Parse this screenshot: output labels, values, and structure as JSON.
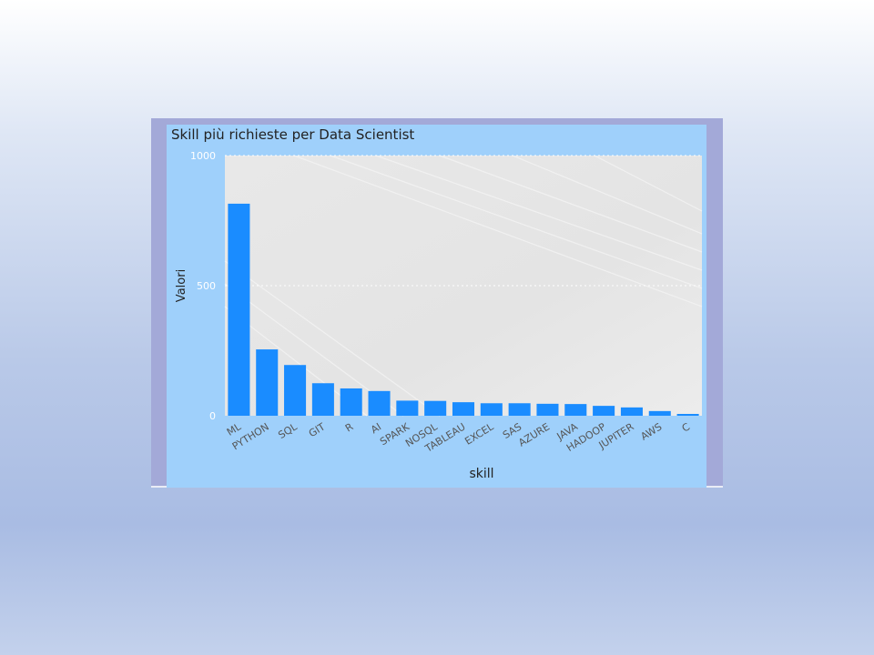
{
  "chart_data": {
    "type": "bar",
    "title": "Skill più richieste per Data Scientist",
    "xlabel": "skill",
    "ylabel": "Valori",
    "categories": [
      "ML",
      "PYTHON",
      "SQL",
      "GIT",
      "R",
      "AI",
      "SPARK",
      "NOSQL",
      "TABLEAU",
      "EXCEL",
      "SAS",
      "AZURE",
      "JAVA",
      "HADOOP",
      "JUPITER",
      "AWS",
      "C"
    ],
    "values": [
      815,
      255,
      195,
      125,
      105,
      95,
      58,
      57,
      52,
      48,
      48,
      46,
      45,
      38,
      32,
      18,
      7
    ],
    "ylim": [
      0,
      1000
    ],
    "yticks": [
      0,
      500,
      1000
    ],
    "grid": true,
    "legend": "none",
    "colors": {
      "bar": "#1a8cff",
      "plot_background": "#e6e6e6",
      "card_background": "#9fd0fb",
      "frame": "#a3a9d8"
    }
  }
}
